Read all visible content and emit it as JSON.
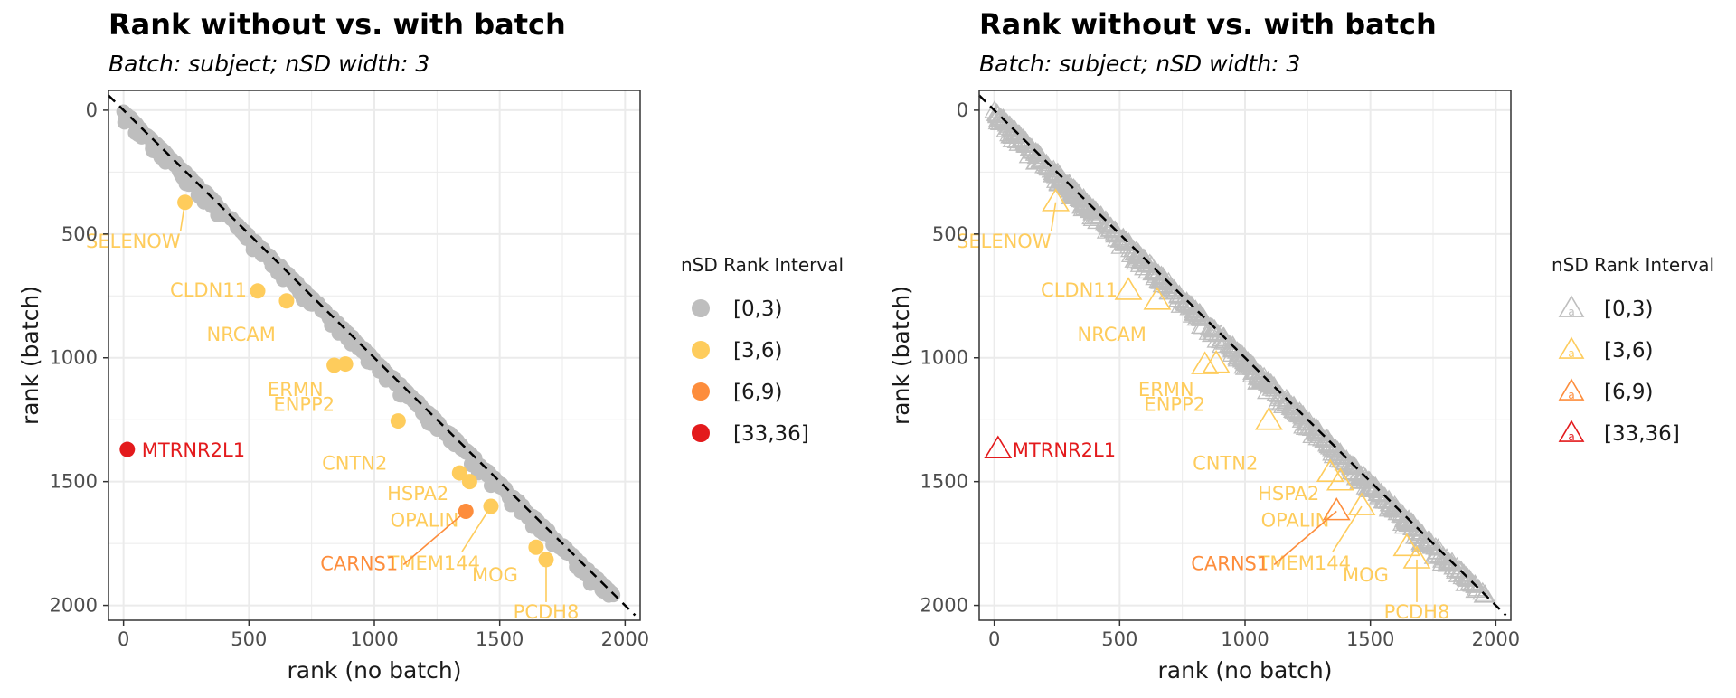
{
  "chart_data": [
    {
      "type": "scatter",
      "marker": "circle",
      "title": "Rank without vs. with batch",
      "subtitle": "Batch: subject; nSD width: 3",
      "xlabel": "rank (no batch)",
      "ylabel": "rank (batch)",
      "xlim": [
        -60,
        2060
      ],
      "ylim": [
        2060,
        -80
      ],
      "y_reversed": true,
      "x_ticks": [
        0,
        500,
        1000,
        1500,
        2000
      ],
      "y_ticks": [
        0,
        500,
        1000,
        1500,
        2000
      ],
      "reference_line": "y = x (dashed)",
      "grid": true,
      "legend": {
        "title": "nSD Rank Interval",
        "position": "right",
        "entries": [
          {
            "label": "[0,3)",
            "color": "#bebebe"
          },
          {
            "label": "[3,6)",
            "color": "#fecc5c"
          },
          {
            "label": "[6,9)",
            "color": "#fd8d3c"
          },
          {
            "label": "[33,36]",
            "color": "#e31a1c"
          }
        ]
      },
      "bulk_series": {
        "interval": "[0,3)",
        "description": "~2000 genes lying just below the diagonal",
        "x_range": [
          0,
          2000
        ],
        "y_range": [
          0,
          1960
        ]
      },
      "highlighted_points": [
        {
          "gene": "SELENOW",
          "x": 245,
          "y": 372,
          "interval": "[3,6)"
        },
        {
          "gene": "CLDN11",
          "x": 535,
          "y": 730,
          "interval": "[3,6)"
        },
        {
          "gene": "NRCAM",
          "x": 650,
          "y": 770,
          "interval": "[3,6)"
        },
        {
          "gene": "ERMN",
          "x": 840,
          "y": 1030,
          "interval": "[3,6)"
        },
        {
          "gene": "ENPP2",
          "x": 885,
          "y": 1025,
          "interval": "[3,6)"
        },
        {
          "gene": "CNTN2",
          "x": 1095,
          "y": 1255,
          "interval": "[3,6)"
        },
        {
          "gene": "HSPA2",
          "x": 1340,
          "y": 1465,
          "interval": "[3,6)"
        },
        {
          "gene": "OPALIN",
          "x": 1380,
          "y": 1500,
          "interval": "[3,6)"
        },
        {
          "gene": "TMEM144",
          "x": 1465,
          "y": 1600,
          "interval": "[3,6)"
        },
        {
          "gene": "CARNS1",
          "x": 1365,
          "y": 1620,
          "interval": "[6,9)"
        },
        {
          "gene": "MOG",
          "x": 1645,
          "y": 1765,
          "interval": "[3,6)"
        },
        {
          "gene": "PCDH8",
          "x": 1685,
          "y": 1815,
          "interval": "[3,6)"
        },
        {
          "gene": "MTRNR2L1",
          "x": 15,
          "y": 1370,
          "interval": "[33,36]"
        }
      ]
    },
    {
      "type": "scatter",
      "marker": "triangle",
      "title": "Rank without vs. with batch",
      "subtitle": "Batch: subject; nSD width: 3",
      "xlabel": "rank (no batch)",
      "ylabel": "rank (batch)",
      "xlim": [
        -60,
        2060
      ],
      "ylim": [
        2060,
        -80
      ],
      "y_reversed": true,
      "x_ticks": [
        0,
        500,
        1000,
        1500,
        2000
      ],
      "y_ticks": [
        0,
        500,
        1000,
        1500,
        2000
      ],
      "reference_line": "y = x (dashed)",
      "grid": true,
      "legend": {
        "title": "nSD Rank Interval",
        "position": "right",
        "entries": [
          {
            "label": "[0,3)",
            "color": "#bebebe"
          },
          {
            "label": "[3,6)",
            "color": "#fecc5c"
          },
          {
            "label": "[6,9)",
            "color": "#fd8d3c"
          },
          {
            "label": "[33,36]",
            "color": "#e31a1c"
          }
        ]
      },
      "bulk_series": {
        "interval": "[0,3)",
        "description": "~2000 genes lying just below the diagonal",
        "x_range": [
          0,
          2000
        ],
        "y_range": [
          0,
          1960
        ]
      },
      "highlighted_points": [
        {
          "gene": "SELENOW",
          "x": 245,
          "y": 372,
          "interval": "[3,6)"
        },
        {
          "gene": "CLDN11",
          "x": 535,
          "y": 730,
          "interval": "[3,6)"
        },
        {
          "gene": "NRCAM",
          "x": 650,
          "y": 770,
          "interval": "[3,6)"
        },
        {
          "gene": "ERMN",
          "x": 840,
          "y": 1030,
          "interval": "[3,6)"
        },
        {
          "gene": "ENPP2",
          "x": 885,
          "y": 1025,
          "interval": "[3,6)"
        },
        {
          "gene": "CNTN2",
          "x": 1095,
          "y": 1255,
          "interval": "[3,6)"
        },
        {
          "gene": "HSPA2",
          "x": 1340,
          "y": 1465,
          "interval": "[3,6)"
        },
        {
          "gene": "OPALIN",
          "x": 1380,
          "y": 1500,
          "interval": "[3,6)"
        },
        {
          "gene": "TMEM144",
          "x": 1465,
          "y": 1600,
          "interval": "[3,6)"
        },
        {
          "gene": "CARNS1",
          "x": 1365,
          "y": 1620,
          "interval": "[6,9)"
        },
        {
          "gene": "MOG",
          "x": 1645,
          "y": 1765,
          "interval": "[3,6)"
        },
        {
          "gene": "PCDH8",
          "x": 1685,
          "y": 1815,
          "interval": "[3,6)"
        },
        {
          "gene": "MTRNR2L1",
          "x": 15,
          "y": 1370,
          "interval": "[33,36]"
        }
      ]
    }
  ]
}
